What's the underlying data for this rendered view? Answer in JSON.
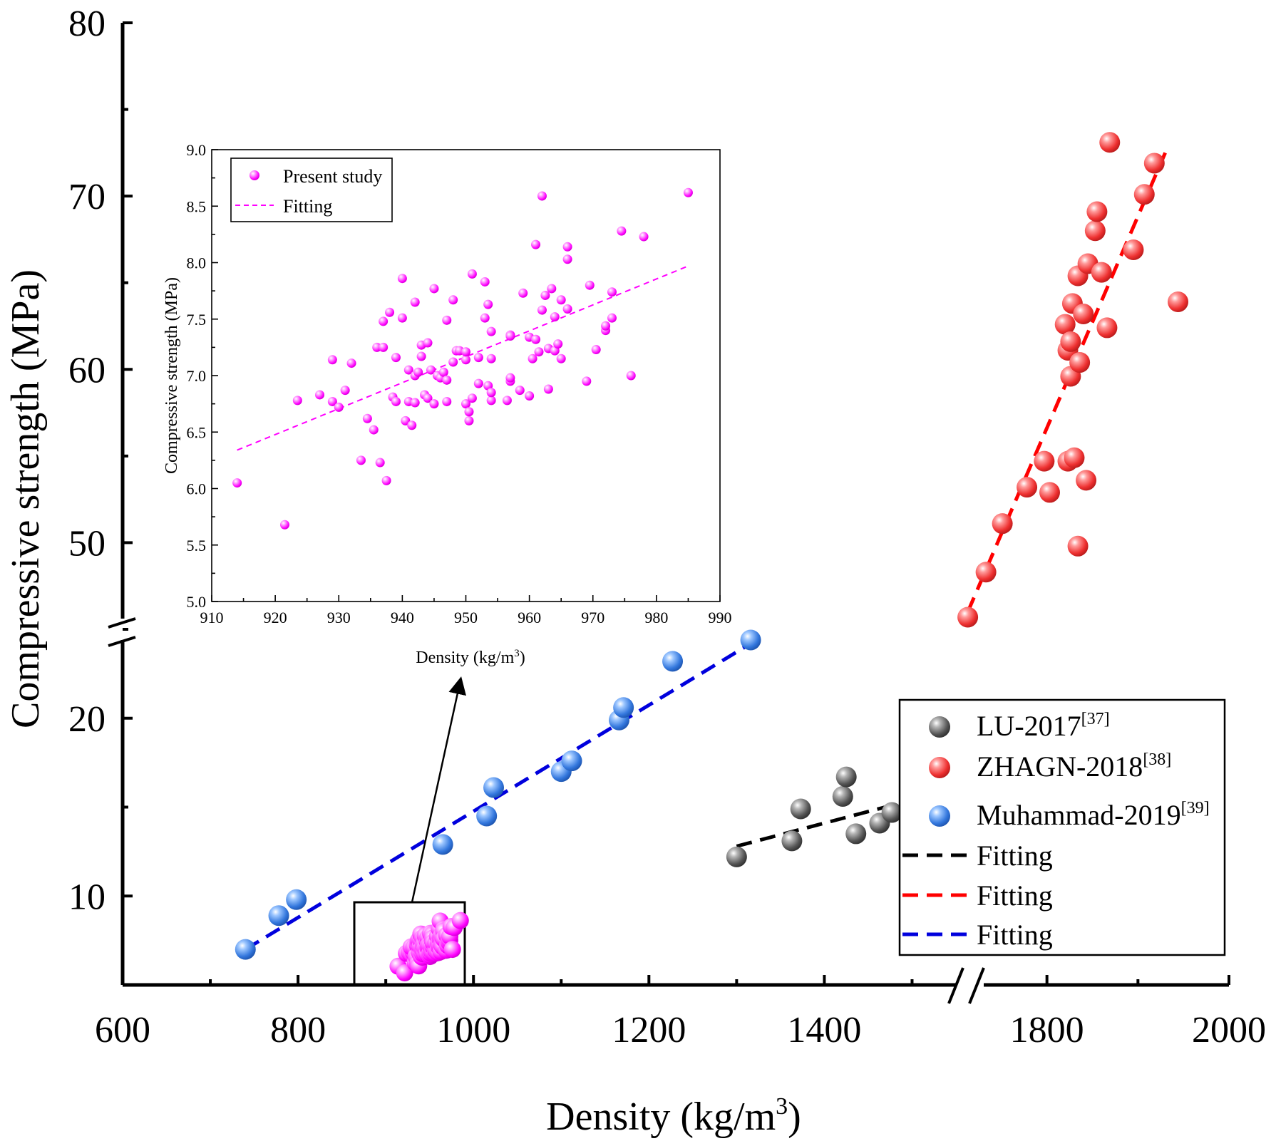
{
  "chart_data": [
    {
      "name": "main",
      "type": "scatter",
      "xlabel": "Density (kg/m",
      "xlabel_sup": "3",
      "xlabel_end": ")",
      "ylabel": "Compressive strength (MPa)",
      "x_segments": [
        [
          600,
          1550
        ],
        [
          1700,
          2000
        ]
      ],
      "x_ticks": [
        "600",
        "800",
        "1000",
        "1200",
        "1400",
        "1800",
        "2000"
      ],
      "y_segments": [
        [
          5,
          25
        ],
        [
          45,
          80
        ]
      ],
      "y_ticks": [
        "10",
        "20",
        "50",
        "60",
        "70",
        "80"
      ],
      "series": [
        {
          "name": "LU-2017",
          "ref": "[37]",
          "color": "#555555",
          "points": [
            [
              1300,
              12.2
            ],
            [
              1363,
              13.1
            ],
            [
              1373,
              14.9
            ],
            [
              1421,
              15.6
            ],
            [
              1425,
              16.7
            ],
            [
              1436,
              13.5
            ],
            [
              1463,
              14.1
            ],
            [
              1477,
              14.7
            ]
          ]
        },
        {
          "name": "ZHAGN-2018",
          "ref": "[38]",
          "color": "#ee3333",
          "points": [
            [
              1713,
              45.7
            ],
            [
              1733,
              48.3
            ],
            [
              1751,
              51.1
            ],
            [
              1778,
              53.2
            ],
            [
              1797,
              54.7
            ],
            [
              1803,
              52.9
            ],
            [
              1823,
              54.7
            ],
            [
              1830,
              54.9
            ],
            [
              1834,
              49.8
            ],
            [
              1843,
              53.6
            ],
            [
              1820,
              62.6
            ],
            [
              1823,
              61.1
            ],
            [
              1826,
              59.6
            ],
            [
              1826,
              61.6
            ],
            [
              1828,
              63.8
            ],
            [
              1834,
              65.4
            ],
            [
              1836,
              60.4
            ],
            [
              1840,
              63.2
            ],
            [
              1845,
              66.1
            ],
            [
              1853,
              68.0
            ],
            [
              1855,
              69.1
            ],
            [
              1860,
              65.6
            ],
            [
              1866,
              62.4
            ],
            [
              1869,
              73.1
            ],
            [
              1895,
              66.9
            ],
            [
              1907,
              70.1
            ],
            [
              1918,
              71.9
            ],
            [
              1944,
              63.9
            ]
          ]
        },
        {
          "name": "Muhammad-2019",
          "ref": "[39]",
          "color": "#3377dd",
          "points": [
            [
              740,
              7.0
            ],
            [
              778,
              8.9
            ],
            [
              798,
              9.8
            ],
            [
              965,
              12.9
            ],
            [
              1015,
              14.5
            ],
            [
              1023,
              16.1
            ],
            [
              1100,
              17.0
            ],
            [
              1112,
              17.6
            ],
            [
              1166,
              19.9
            ],
            [
              1171,
              20.6
            ],
            [
              1227,
              23.2
            ],
            [
              1316,
              24.4
            ]
          ]
        }
      ],
      "fits": [
        {
          "name": "Fitting",
          "color": "#000000",
          "from": [
            1300,
            12.8
          ],
          "to": [
            1477,
            15.1
          ]
        },
        {
          "name": "Fitting",
          "color": "#ff0000",
          "from": [
            1713,
            46.0
          ],
          "to": [
            1930,
            72.5
          ]
        },
        {
          "name": "Fitting",
          "color": "#0000dd",
          "from": [
            740,
            7.0
          ],
          "to": [
            1316,
            24.2
          ]
        }
      ],
      "present_cluster": {
        "name": "Present study",
        "color": "#ff00ff",
        "x_range": [
          914,
          985
        ],
        "y_range": [
          5.6,
          8.6
        ]
      }
    },
    {
      "name": "inset",
      "type": "scatter",
      "xlabel": "Density (kg/m",
      "xlabel_sup": "3",
      "xlabel_end": ")",
      "ylabel": "Compressive strength (MPa)",
      "xlim": [
        910,
        990
      ],
      "ylim": [
        5.0,
        9.0
      ],
      "x_ticks": [
        "910",
        "920",
        "930",
        "940",
        "950",
        "960",
        "970",
        "980",
        "990"
      ],
      "y_ticks": [
        "5.0",
        "5.5",
        "6.0",
        "6.5",
        "7.0",
        "7.5",
        "8.0",
        "8.5",
        "9.0"
      ],
      "series": [
        {
          "name": "Present study",
          "color": "#ff00ff",
          "points": [
            [
              914,
              6.05
            ],
            [
              921.5,
              5.68
            ],
            [
              923.5,
              6.78
            ],
            [
              927,
              6.83
            ],
            [
              929,
              6.77
            ],
            [
              930,
              6.72
            ],
            [
              931,
              6.87
            ],
            [
              929,
              7.14
            ],
            [
              932,
              7.11
            ],
            [
              933.5,
              6.25
            ],
            [
              934.5,
              6.62
            ],
            [
              935.5,
              6.52
            ],
            [
              936,
              7.25
            ],
            [
              937,
              7.25
            ],
            [
              936.5,
              6.23
            ],
            [
              937.5,
              6.07
            ],
            [
              937,
              7.48
            ],
            [
              938,
              7.56
            ],
            [
              938.5,
              6.81
            ],
            [
              939,
              6.77
            ],
            [
              939,
              7.16
            ],
            [
              940,
              7.51
            ],
            [
              940,
              7.86
            ],
            [
              940.5,
              6.6
            ],
            [
              941,
              7.05
            ],
            [
              941,
              6.77
            ],
            [
              941.5,
              6.56
            ],
            [
              942,
              6.76
            ],
            [
              942,
              7.0
            ],
            [
              942.5,
              7.03
            ],
            [
              942,
              7.65
            ],
            [
              943,
              7.27
            ],
            [
              943,
              7.17
            ],
            [
              943.5,
              6.83
            ],
            [
              944,
              7.29
            ],
            [
              944,
              6.8
            ],
            [
              944.5,
              7.05
            ],
            [
              945,
              6.75
            ],
            [
              945.5,
              7.0
            ],
            [
              945,
              7.77
            ],
            [
              946,
              6.98
            ],
            [
              946.5,
              7.03
            ],
            [
              947,
              6.96
            ],
            [
              947,
              7.49
            ],
            [
              947,
              6.77
            ],
            [
              948,
              7.12
            ],
            [
              948,
              7.67
            ],
            [
              948.5,
              7.22
            ],
            [
              949,
              7.22
            ],
            [
              950,
              7.14
            ],
            [
              950,
              7.21
            ],
            [
              950,
              6.75
            ],
            [
              950.5,
              6.6
            ],
            [
              950.5,
              6.68
            ],
            [
              951,
              6.8
            ],
            [
              951,
              7.9
            ],
            [
              952,
              6.93
            ],
            [
              952,
              7.16
            ],
            [
              953,
              7.83
            ],
            [
              953,
              7.51
            ],
            [
              953.5,
              6.91
            ],
            [
              953.5,
              7.63
            ],
            [
              954,
              6.78
            ],
            [
              954,
              6.85
            ],
            [
              954,
              7.15
            ],
            [
              954,
              7.39
            ],
            [
              956.5,
              6.78
            ],
            [
              957,
              6.95
            ],
            [
              957,
              6.98
            ],
            [
              957,
              7.36
            ],
            [
              957,
              7.35
            ],
            [
              958.5,
              6.87
            ],
            [
              959,
              7.73
            ],
            [
              960,
              7.34
            ],
            [
              960,
              6.82
            ],
            [
              960.5,
              7.15
            ],
            [
              961,
              7.32
            ],
            [
              961,
              8.16
            ],
            [
              961.5,
              7.21
            ],
            [
              962,
              7.58
            ],
            [
              962,
              8.59
            ],
            [
              962.5,
              7.71
            ],
            [
              963,
              7.24
            ],
            [
              963,
              6.88
            ],
            [
              963.5,
              7.77
            ],
            [
              964,
              7.22
            ],
            [
              964,
              7.52
            ],
            [
              964.5,
              7.28
            ],
            [
              965,
              7.15
            ],
            [
              965,
              7.67
            ],
            [
              966,
              8.14
            ],
            [
              966,
              8.03
            ],
            [
              966,
              7.59
            ],
            [
              969,
              6.95
            ],
            [
              969.5,
              7.8
            ],
            [
              970.5,
              7.23
            ],
            [
              972,
              7.4
            ],
            [
              972,
              7.44
            ],
            [
              973,
              7.51
            ],
            [
              973,
              7.74
            ],
            [
              974.5,
              8.28
            ],
            [
              976,
              7.0
            ],
            [
              978,
              8.23
            ],
            [
              985,
              8.62
            ]
          ]
        }
      ],
      "fit": {
        "name": "Fitting",
        "color": "#ff00ff",
        "from": [
          914,
          6.34
        ],
        "to": [
          985,
          7.97
        ]
      }
    }
  ],
  "legend_main": {
    "items": [
      {
        "label": "LU-2017",
        "ref": "[37]"
      },
      {
        "label": "ZHAGN-2018",
        "ref": "[38]"
      },
      {
        "label": "Muhammad-2019",
        "ref": "[39]"
      },
      {
        "label": "Fitting"
      },
      {
        "label": "Fitting"
      },
      {
        "label": "Fitting"
      }
    ]
  },
  "legend_inset": {
    "items": [
      {
        "label": "Present study"
      },
      {
        "label": "Fitting"
      }
    ]
  }
}
